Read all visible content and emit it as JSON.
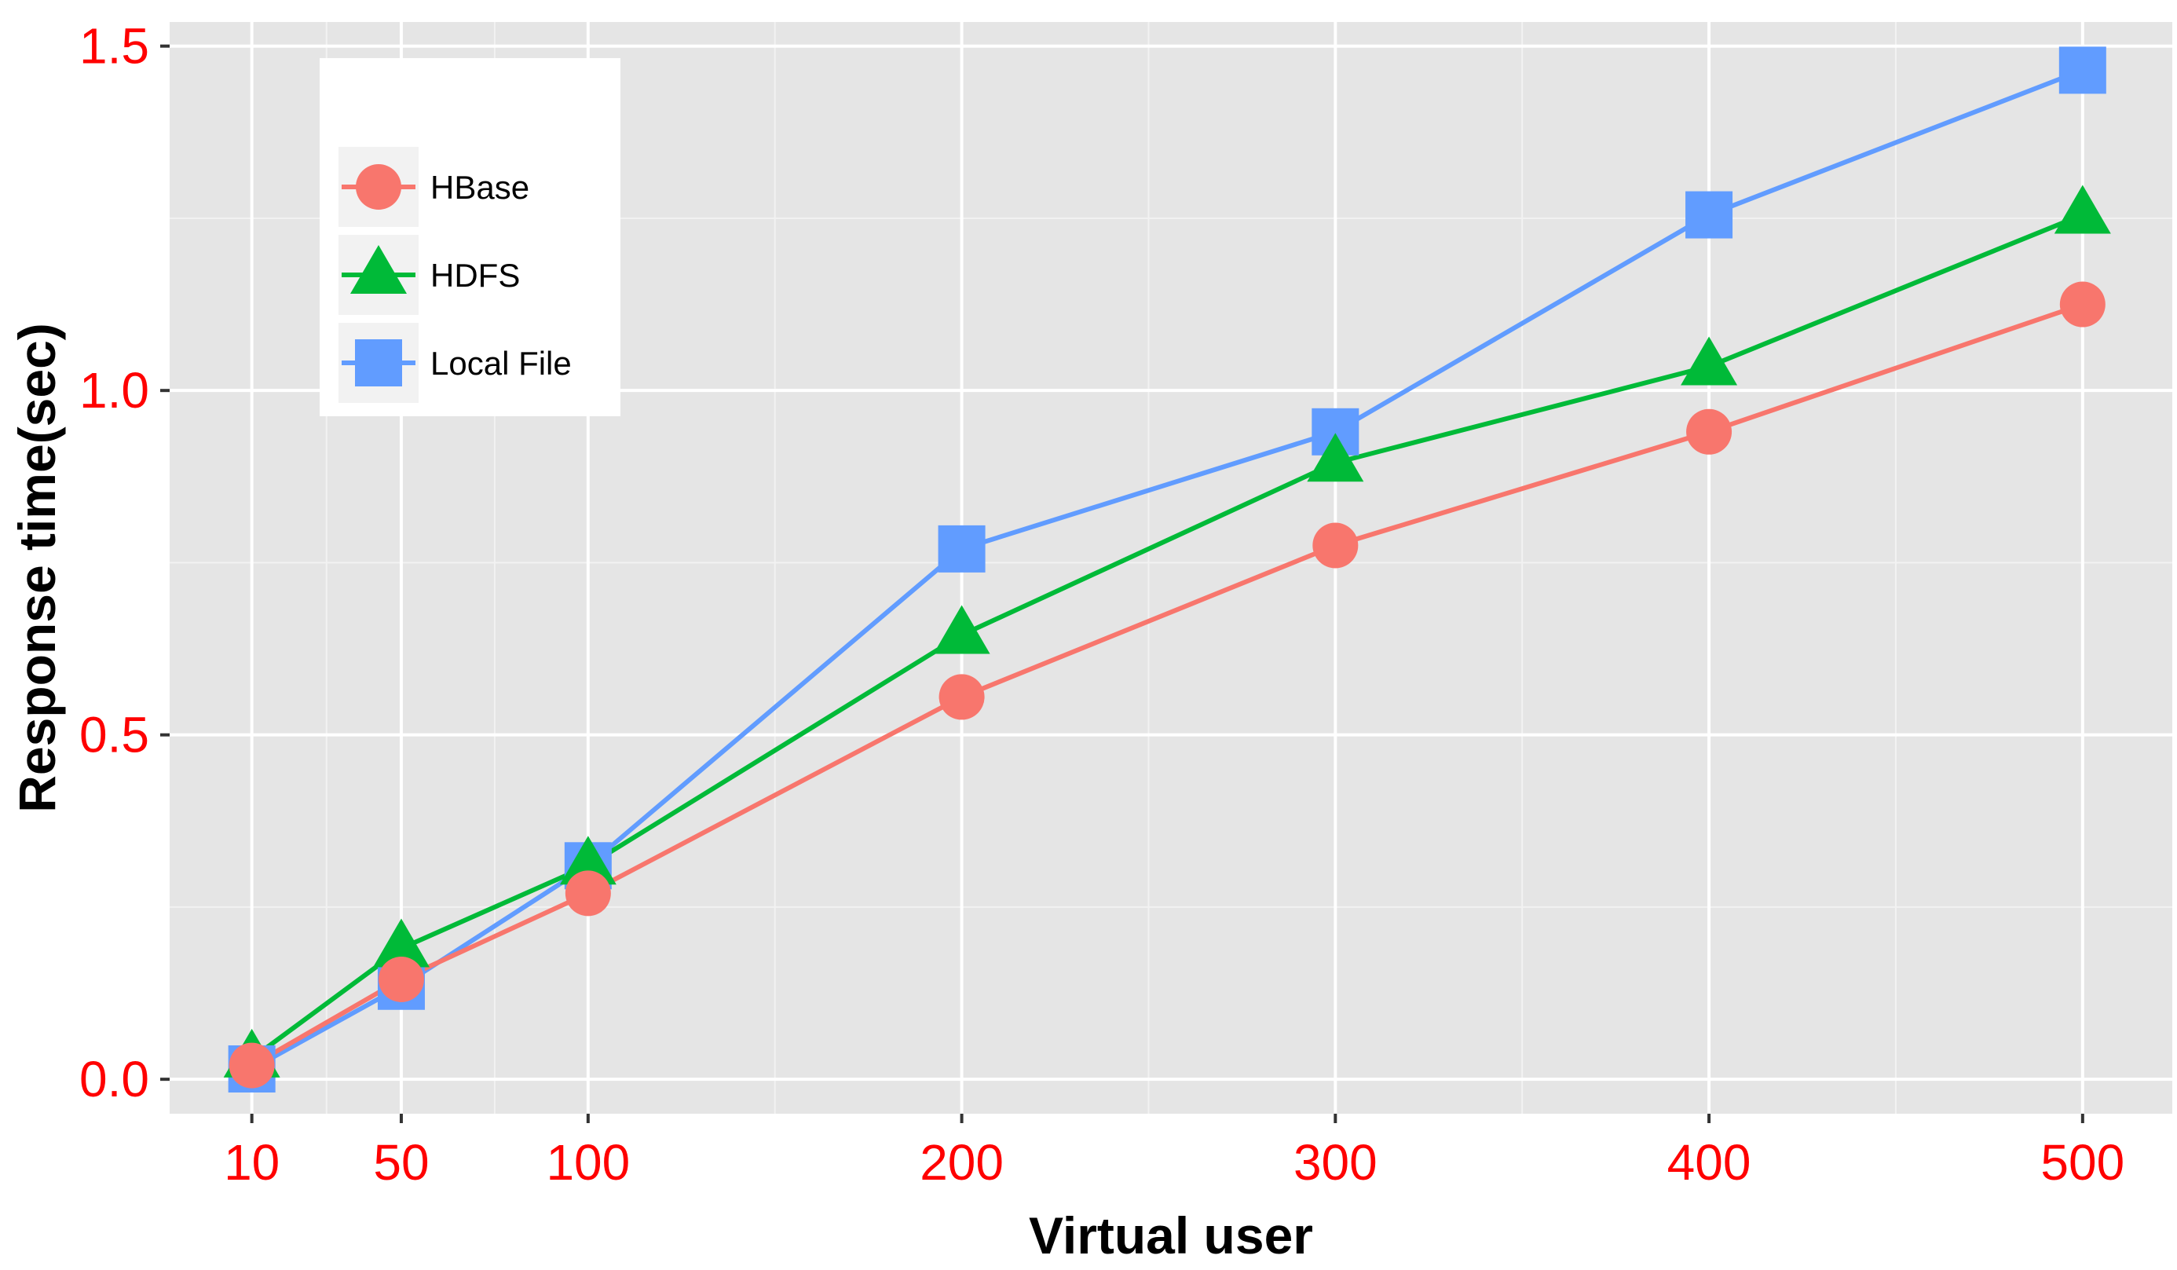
{
  "chart_data": {
    "type": "line",
    "title": "",
    "xlabel": "Virtual user",
    "ylabel": "Response time(sec)",
    "x": [
      10,
      50,
      100,
      200,
      300,
      400,
      500
    ],
    "x_ticks": [
      10,
      50,
      100,
      200,
      300,
      400,
      500
    ],
    "x_tick_labels": [
      "10",
      "50",
      "100",
      "200",
      "300",
      "400",
      "500"
    ],
    "y_ticks": [
      0.0,
      0.5,
      1.0,
      1.5
    ],
    "y_tick_labels": [
      "0.0",
      "0.5",
      "1.0",
      "1.5"
    ],
    "xlim": [
      -12,
      524
    ],
    "ylim": [
      -0.05,
      1.535
    ],
    "grid": true,
    "legend_position": "top-left",
    "series": [
      {
        "name": "HBase",
        "color": "#f8766d",
        "marker": "circle",
        "values": [
          0.02,
          0.145,
          0.27,
          0.555,
          0.775,
          0.94,
          1.125
        ]
      },
      {
        "name": "HDFS",
        "color": "#00ba38",
        "marker": "triangle",
        "values": [
          0.03,
          0.19,
          0.31,
          0.645,
          0.895,
          1.035,
          1.255
        ]
      },
      {
        "name": "Local File",
        "color": "#619cff",
        "marker": "square",
        "values": [
          0.015,
          0.135,
          0.31,
          0.77,
          0.94,
          1.255,
          1.465
        ]
      }
    ]
  }
}
